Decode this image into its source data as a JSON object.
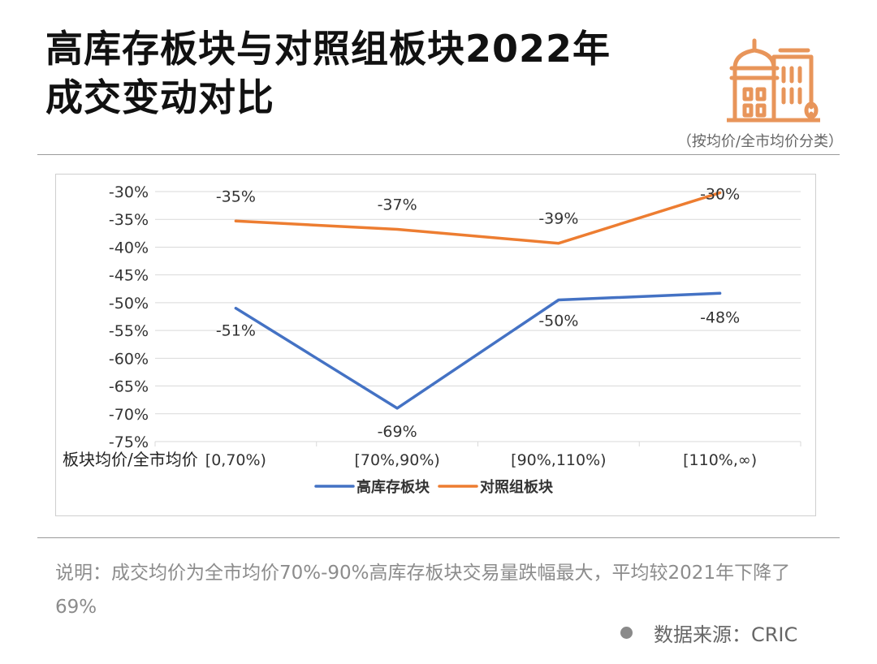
{
  "header": {
    "title_line1": "高库存板块与对照组板块2022年",
    "title_line2": "成交变动对比",
    "subtitle": "（按均价/全市均价分类）",
    "icon": "city-buildings-icon"
  },
  "footer": {
    "note": "说明：成交均价为全市均价70%-90%高库存板块交易量跌幅最大，平均较2021年下降了69%",
    "source": "数据来源：CRIC"
  },
  "colors": {
    "high_inventory": "#4472C4",
    "control": "#ED7D31",
    "icon": "#E8955A"
  },
  "chart_data": {
    "type": "line",
    "title": "",
    "xlabel": "板块均价/全市均价",
    "ylabel": "",
    "categories": [
      "[0,70%)",
      "[70%,90%)",
      "[90%,110%)",
      "[110%,∞)"
    ],
    "ylim": [
      -75,
      -30
    ],
    "yticks": [
      -30,
      -35,
      -40,
      -45,
      -50,
      -55,
      -60,
      -65,
      -70,
      -75
    ],
    "ytick_labels": [
      "-30%",
      "-35%",
      "-40%",
      "-45%",
      "-50%",
      "-55%",
      "-60%",
      "-65%",
      "-70%",
      "-75%"
    ],
    "grid": true,
    "legend_position": "bottom",
    "series": [
      {
        "name": "高库存板块",
        "color": "#4472C4",
        "values": [
          -51,
          -69,
          -49.5,
          -48.3
        ],
        "labels": [
          "-51%",
          "-69%",
          "-50%",
          "-48%"
        ]
      },
      {
        "name": "对照组板块",
        "color": "#ED7D31",
        "values": [
          -35.3,
          -36.8,
          -39.3,
          -30.2
        ],
        "labels": [
          "-35%",
          "-37%",
          "-39%",
          "-30%"
        ]
      }
    ]
  }
}
